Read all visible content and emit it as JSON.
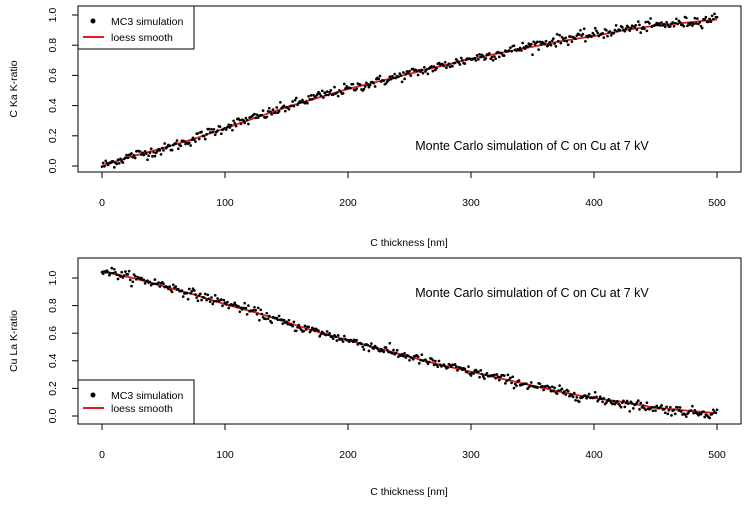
{
  "chart_data": [
    {
      "type": "scatter",
      "annotation": "Monte Carlo simulation of C on Cu at 7 kV",
      "xlabel": "C thickness [nm]",
      "ylabel": "C Ka K-ratio",
      "xlim": [
        0,
        500
      ],
      "ylim": [
        0,
        1.0
      ],
      "xticks": [
        0,
        100,
        200,
        300,
        400,
        500
      ],
      "yticks": [
        0.0,
        0.2,
        0.4,
        0.6,
        0.8,
        1.0
      ],
      "ytick_labels": [
        "0.0",
        "0.2",
        "0.4",
        "0.6",
        "0.8",
        "1.0"
      ],
      "legend_position": "top-left",
      "legend": [
        {
          "label": "MC3 simulation",
          "kind": "point",
          "color": "#000000"
        },
        {
          "label": "loess smooth",
          "kind": "line",
          "color": "#e41a1c"
        }
      ],
      "grid": false,
      "series": [
        {
          "name": "MC3 simulation",
          "style": "points",
          "color": "#000000",
          "x": [
            0,
            25,
            50,
            75,
            100,
            125,
            150,
            175,
            200,
            225,
            250,
            275,
            300,
            325,
            350,
            375,
            400,
            425,
            450,
            475,
            500
          ],
          "y": [
            0.0,
            0.07,
            0.11,
            0.18,
            0.26,
            0.32,
            0.39,
            0.46,
            0.51,
            0.56,
            0.61,
            0.66,
            0.71,
            0.75,
            0.8,
            0.84,
            0.87,
            0.91,
            0.93,
            0.95,
            0.98
          ]
        },
        {
          "name": "loess smooth",
          "style": "line",
          "color": "#e41a1c",
          "x": [
            0,
            25,
            50,
            75,
            100,
            125,
            150,
            175,
            200,
            225,
            250,
            275,
            300,
            325,
            350,
            375,
            400,
            425,
            450,
            475,
            500
          ],
          "y": [
            0.0,
            0.065,
            0.12,
            0.18,
            0.25,
            0.32,
            0.39,
            0.45,
            0.51,
            0.56,
            0.61,
            0.66,
            0.71,
            0.75,
            0.79,
            0.83,
            0.86,
            0.9,
            0.93,
            0.95,
            0.97
          ]
        }
      ]
    },
    {
      "type": "scatter",
      "annotation": "Monte Carlo simulation of C on Cu at 7 kV",
      "xlabel": "C thickness [nm]",
      "ylabel": "Cu La K-ratio",
      "xlim": [
        0,
        500
      ],
      "ylim": [
        0,
        1.0
      ],
      "xticks": [
        0,
        100,
        200,
        300,
        400,
        500
      ],
      "yticks": [
        0.0,
        0.2,
        0.4,
        0.6,
        0.8,
        1.0
      ],
      "ytick_labels": [
        "0.0",
        "0.2",
        "0.4",
        "0.6",
        "0.8",
        "1.0"
      ],
      "legend_position": "bottom-left",
      "legend": [
        {
          "label": "MC3 simulation",
          "kind": "point",
          "color": "#000000"
        },
        {
          "label": "loess smooth",
          "kind": "line",
          "color": "#e41a1c"
        }
      ],
      "grid": false,
      "series": [
        {
          "name": "MC3 simulation",
          "style": "points",
          "color": "#000000",
          "x": [
            0,
            25,
            50,
            75,
            100,
            125,
            150,
            175,
            200,
            225,
            250,
            275,
            300,
            325,
            350,
            375,
            400,
            425,
            450,
            475,
            500
          ],
          "y": [
            1.06,
            1.0,
            0.95,
            0.88,
            0.82,
            0.75,
            0.67,
            0.61,
            0.55,
            0.49,
            0.43,
            0.37,
            0.32,
            0.27,
            0.22,
            0.17,
            0.13,
            0.09,
            0.06,
            0.03,
            0.02
          ]
        },
        {
          "name": "loess smooth",
          "style": "line",
          "color": "#e41a1c",
          "x": [
            0,
            25,
            50,
            75,
            100,
            125,
            150,
            175,
            200,
            225,
            250,
            275,
            300,
            325,
            350,
            375,
            400,
            425,
            450,
            475,
            500
          ],
          "y": [
            1.05,
            1.0,
            0.94,
            0.88,
            0.81,
            0.75,
            0.68,
            0.61,
            0.55,
            0.49,
            0.43,
            0.37,
            0.32,
            0.27,
            0.22,
            0.17,
            0.13,
            0.1,
            0.06,
            0.04,
            0.02
          ]
        }
      ]
    }
  ]
}
